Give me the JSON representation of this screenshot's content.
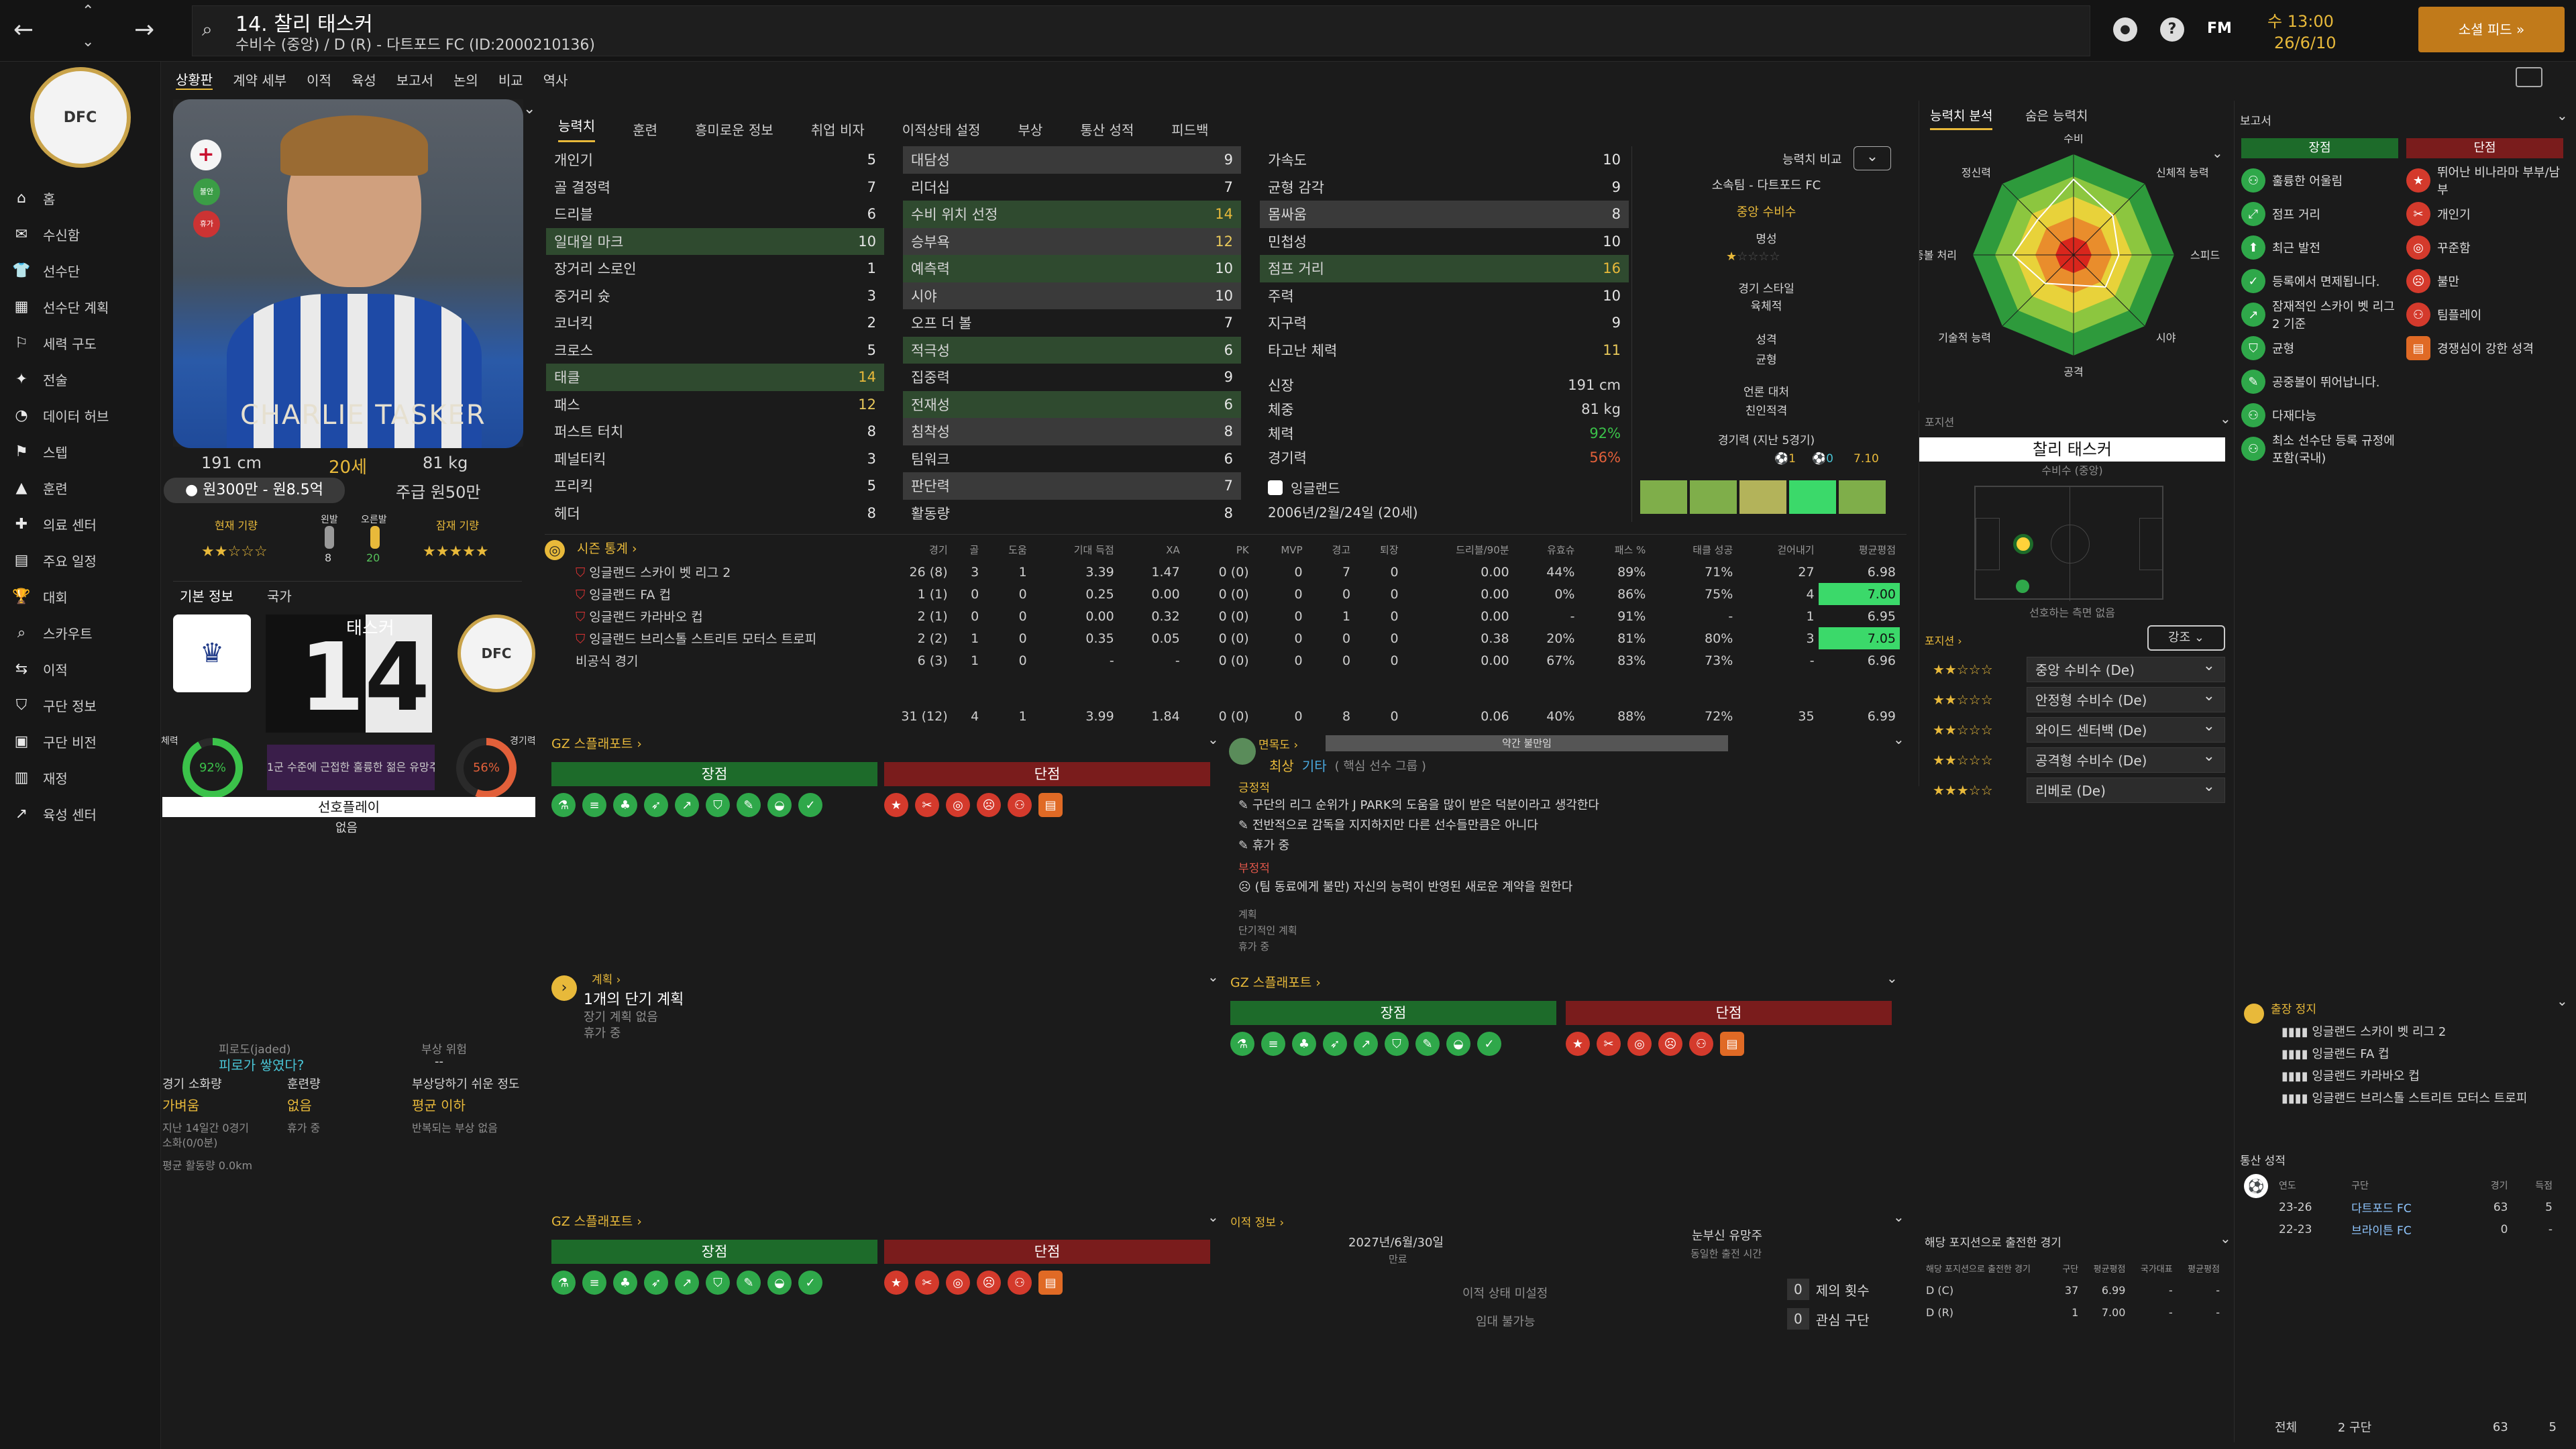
{
  "topbar": {
    "title": "14. 찰리 태스커",
    "subtitle": "수비수 (중앙) / D (R) - 다트포드 FC (ID:2000210136)",
    "time": "수 13:00",
    "date": "26/6/10",
    "continue_label": "소셜 피드",
    "fm_label": "FM"
  },
  "subnav": [
    "상황판",
    "계약 세부",
    "이적",
    "육성",
    "보고서",
    "논의",
    "비교",
    "역사"
  ],
  "leftnav": [
    {
      "icon": "home-icon",
      "label": "홈"
    },
    {
      "icon": "inbox-icon",
      "label": "수신함"
    },
    {
      "icon": "squad-icon",
      "label": "선수단"
    },
    {
      "icon": "squad-plan-icon",
      "label": "선수단 계획"
    },
    {
      "icon": "tactics-icon",
      "label": "세력 구도"
    },
    {
      "icon": "tactics2-icon",
      "label": "전술"
    },
    {
      "icon": "data-hub-icon",
      "label": "데이터 허브"
    },
    {
      "icon": "set-piece-icon",
      "label": "스텝"
    },
    {
      "icon": "training-icon",
      "label": "훈련"
    },
    {
      "icon": "medical-icon",
      "label": "의료 센터"
    },
    {
      "icon": "schedule-icon",
      "label": "주요 일정"
    },
    {
      "icon": "trophy-icon",
      "label": "대회"
    },
    {
      "icon": "scouting-icon",
      "label": "스카우트"
    },
    {
      "icon": "transfer-icon",
      "label": "이적"
    },
    {
      "icon": "club-info-icon",
      "label": "구단 정보"
    },
    {
      "icon": "club-vision-icon",
      "label": "구단 비전"
    },
    {
      "icon": "finance-icon",
      "label": "재정"
    },
    {
      "icon": "dev-centre-icon",
      "label": "육성 센터"
    }
  ],
  "player": {
    "photo_name": "CHARLIE TASKER",
    "height": "191 cm",
    "age": "20세",
    "weight": "81 kg",
    "value": "원300만 - 원8.5억",
    "wage": "주급 원50만",
    "current_ability_label": "현재 기량",
    "potential_ability_label": "잠재 기량",
    "left_foot_label": "왼발",
    "right_foot_label": "오른발",
    "left_foot_value": "8",
    "right_foot_value": "20",
    "badges": [
      "불안",
      "휴가"
    ]
  },
  "basic_info": {
    "tab1": "기본 정보",
    "tab2": "국가",
    "shirt_name": "태스커",
    "shirt_number": "14",
    "fitness_label": "체력",
    "fitness_value": "92%",
    "match_sharpness_label": "경기력",
    "match_sharpness_value": "56%",
    "note": "1군 수준에 근접한 훌륭한 젊은 유망주",
    "preferred_moves_label": "선호플레이",
    "preferred_moves_value": "없음"
  },
  "fatigue": {
    "jaded_label": "피로도(jaded)",
    "jaded_value": "피로가 쌓였다?",
    "injury_risk_label": "부상 위험",
    "injury_risk_value": "--",
    "condition_label": "경기 소화량",
    "condition_value": "가벼움",
    "training_label": "훈련량",
    "training_value": "없음",
    "injury_prone_label": "부상당하기 쉬운 정도",
    "injury_prone_value": "평균 이하",
    "note1": "지난 14일간 0경기",
    "note2": "소화(0/0분)",
    "note3": "휴가 중",
    "note4": "반복되는 부상 없음",
    "distance": "평균 활동량 0.0km"
  },
  "attr_tabs": [
    "능력치",
    "훈련",
    "흥미로운 정보",
    "취업 비자",
    "이적상태 설정",
    "부상",
    "통산 성적",
    "피드백"
  ],
  "technical": [
    {
      "name": "개인기",
      "value": "5"
    },
    {
      "name": "골 결정력",
      "value": "7"
    },
    {
      "name": "드리블",
      "value": "6"
    },
    {
      "name": "일대일 마크",
      "value": "10"
    },
    {
      "name": "장거리 스로인",
      "value": "1"
    },
    {
      "name": "중거리 슛",
      "value": "3"
    },
    {
      "name": "코너킥",
      "value": "2"
    },
    {
      "name": "크로스",
      "value": "5"
    },
    {
      "name": "태클",
      "value": "14"
    },
    {
      "name": "패스",
      "value": "12"
    },
    {
      "name": "퍼스트 터치",
      "value": "8"
    },
    {
      "name": "페널티킥",
      "value": "3"
    },
    {
      "name": "프리킥",
      "value": "5"
    },
    {
      "name": "헤더",
      "value": "8"
    }
  ],
  "mental": [
    {
      "name": "대담성",
      "value": "9"
    },
    {
      "name": "리더십",
      "value": "7"
    },
    {
      "name": "수비 위치 선정",
      "value": "14"
    },
    {
      "name": "승부욕",
      "value": "12"
    },
    {
      "name": "예측력",
      "value": "10"
    },
    {
      "name": "시야",
      "value": "10"
    },
    {
      "name": "오프 더 볼",
      "value": "7"
    },
    {
      "name": "적극성",
      "value": "6"
    },
    {
      "name": "집중력",
      "value": "9"
    },
    {
      "name": "전재성",
      "value": "6"
    },
    {
      "name": "침착성",
      "value": "8"
    },
    {
      "name": "팀워크",
      "value": "6"
    },
    {
      "name": "판단력",
      "value": "7"
    },
    {
      "name": "활동량",
      "value": "8"
    }
  ],
  "physical": [
    {
      "name": "가속도",
      "value": "10"
    },
    {
      "name": "균형 감각",
      "value": "9"
    },
    {
      "name": "몸싸움",
      "value": "8"
    },
    {
      "name": "민첩성",
      "value": "10"
    },
    {
      "name": "점프 거리",
      "value": "16"
    },
    {
      "name": "주력",
      "value": "10"
    },
    {
      "name": "지구력",
      "value": "9"
    },
    {
      "name": "타고난 체력",
      "value": "11"
    }
  ],
  "physical_info": [
    {
      "label": "신장",
      "value": "191 cm"
    },
    {
      "label": "체중",
      "value": "81 kg"
    },
    {
      "label": "체력",
      "value": "92%"
    },
    {
      "label": "경기력",
      "value": "56%"
    }
  ],
  "nationality": "잉글랜드",
  "dob": "2006년/2월/24일 (20세)",
  "comparison": {
    "title": "능력치 비교",
    "club": "소속팀 - 다트포드 FC",
    "position": "중앙 수비수",
    "reputation_label": "명성",
    "playing_style_label": "경기 스타일",
    "playing_style_value": "육체적",
    "personality_label": "성격",
    "personality_value": "균형",
    "media_label": "언론 대처",
    "media_value": "친인적격",
    "form_label": "경기력 (지난 5경기)",
    "form_goals": "1",
    "form_assists": "0",
    "form_rating": "7.10"
  },
  "season_stats": {
    "title": "시즌 통계",
    "headers": [
      "경기",
      "골",
      "도움",
      "기대 득점",
      "XA",
      "PK",
      "MVP",
      "경고",
      "퇴장",
      "드리블/90분",
      "유효슈",
      "패스 %",
      "태클 성공",
      "걷어내기",
      "평균평점"
    ],
    "rows": [
      {
        "comp": "잉글랜드 스카이 벳 리그 2",
        "vals": [
          "26 (8)",
          "3",
          "1",
          "3.39",
          "1.47",
          "0 (0)",
          "0",
          "7",
          "0",
          "0.00",
          "44%",
          "89%",
          "71%",
          "27",
          "6.98"
        ]
      },
      {
        "comp": "잉글랜드 FA 컵",
        "vals": [
          "1 (1)",
          "0",
          "0",
          "0.25",
          "0.00",
          "0 (0)",
          "0",
          "0",
          "0",
          "0.00",
          "0%",
          "86%",
          "75%",
          "4",
          "7.00"
        ]
      },
      {
        "comp": "잉글랜드 카라바오 컵",
        "vals": [
          "2 (1)",
          "0",
          "0",
          "0.00",
          "0.32",
          "0 (0)",
          "0",
          "1",
          "0",
          "0.00",
          "-",
          "91%",
          "-",
          "1",
          "6.95"
        ]
      },
      {
        "comp": "잉글랜드 브리스톨 스트리트 모터스 트로피",
        "vals": [
          "2 (2)",
          "1",
          "0",
          "0.35",
          "0.05",
          "0 (0)",
          "0",
          "0",
          "0",
          "0.38",
          "20%",
          "81%",
          "80%",
          "3",
          "7.05"
        ]
      },
      {
        "comp": "비공식 경기",
        "vals": [
          "6 (3)",
          "1",
          "0",
          "-",
          "-",
          "0 (0)",
          "0",
          "0",
          "0",
          "0.00",
          "67%",
          "83%",
          "73%",
          "-",
          "6.96"
        ]
      }
    ],
    "total": [
      "31 (12)",
      "4",
      "1",
      "3.99",
      "1.84",
      "0 (0)",
      "0",
      "8",
      "0",
      "0.06",
      "40%",
      "88%",
      "72%",
      "35",
      "6.99"
    ]
  },
  "scout_report": {
    "title": "스플래포트",
    "title2": "스플래포트",
    "strengths_label": "장점",
    "weaknesses_label": "단점"
  },
  "interaction": {
    "title": "면목도",
    "status": "약간 불만임",
    "level": "최상",
    "level2": "기타",
    "group": "( 핵심 선수 그룹 )",
    "positive_label": "긍정적",
    "positive": [
      "구단의 리그 순위가 J PARK의 도움을 많이 받은 덕분이라고 생각한다",
      "전반적으로 감독을 지지하지만 다른 선수들만큼은 아니다",
      "휴가 중"
    ],
    "negative_label": "부정적",
    "negative": [
      "(팀 동료에게 불만) 자신의 능력이 반영된 새로운 계약을 원한다"
    ],
    "plans_label": "계획",
    "plans_sub": "단기적인 계획",
    "plans_item": "휴가 중"
  },
  "plans": {
    "title": "계획",
    "headline": "1개의 단기 계획",
    "line1": "장기 계획 없음",
    "line2": "휴가 중"
  },
  "transfer": {
    "title": "이적 정보",
    "contract_date": "2027년/6월/30일",
    "contract_label": "만료",
    "loan_label": "눈부신 유망주",
    "loan_sub": "동일한 출전 시간",
    "status_label": "이적 상태 미설정",
    "release_label": "임대 불가능",
    "offers_count": "0",
    "offers_label": "제의 횟수",
    "interest_count": "0",
    "interest_label": "관심 구단"
  },
  "ability_tabs": [
    "능력치 분석",
    "숨은 능력치"
  ],
  "radar_labels": [
    "수비",
    "신체적 능력",
    "스피드",
    "시야",
    "공격",
    "기술적 능력",
    "공중볼 처리",
    "정신력"
  ],
  "radar_values": [
    0.75,
    0.55,
    0.45,
    0.45,
    0.3,
    0.4,
    0.6,
    0.5
  ],
  "positions": {
    "title": "포지션",
    "name": "찰리 태스커",
    "main": "수비수 (중앙)",
    "preferred_side": "선호하는 측면 없음",
    "roles_title": "포지션",
    "highlight_label": "강조",
    "roles": [
      {
        "stars": "★★☆☆☆",
        "role": "중앙 수비수 (De)"
      },
      {
        "stars": "★★☆☆☆",
        "role": "안정형 수비수 (De)"
      },
      {
        "stars": "★★☆☆☆",
        "role": "와이드 센터백 (De)"
      },
      {
        "stars": "★★☆☆☆",
        "role": "공격형 수비수 (De)"
      },
      {
        "stars": "★★★☆☆",
        "role": "리베로 (De)"
      }
    ]
  },
  "appearances": {
    "title": "해당 포지션으로 출전한 경기",
    "headers": [
      "해당 포지션으로 출전한 경기",
      "구단",
      "평균평점",
      "국가대표",
      "평균평점"
    ],
    "rows": [
      {
        "pos": "D (C)",
        "apps": "37",
        "rating": "6.99",
        "int": "-",
        "int_rating": "-"
      },
      {
        "pos": "D (R)",
        "apps": "1",
        "rating": "7.00",
        "int": "-",
        "int_rating": "-"
      }
    ]
  },
  "reports": {
    "title": "보고서",
    "strengths_label": "장점",
    "weaknesses_label": "단점",
    "strengths": [
      "훌륭한 어울림",
      "점프 거리",
      "최근 발전",
      "등록에서 면제됩니다.",
      "잠재적인 스카이 벳 리그 2 기준",
      "균형",
      "공중볼이 뛰어납니다.",
      "다재다능",
      "최소 선수단 등록 규정에 포함(국내)"
    ],
    "weaknesses": [
      "뛰어난 비나라마 부부/남부",
      "개인기",
      "꾸준함",
      "불만",
      "팀플레이",
      "경쟁심이 강한 성격"
    ]
  },
  "suspension": {
    "title": "출장 정지",
    "items": [
      "잉글랜드 스카이 벳 리그 2",
      "잉글랜드 FA 컵",
      "잉글랜드 카라바오 컵",
      "잉글랜드 브리스톨 스트리트 모터스 트로피"
    ]
  },
  "career": {
    "title": "통산 성적",
    "headers": [
      "연도",
      "구단",
      "경기",
      "득점"
    ],
    "rows": [
      {
        "year": "23-26",
        "club": "다트포드 FC",
        "apps": "63",
        "goals": "5"
      },
      {
        "year": "22-23",
        "club": "브라이튼 FC",
        "apps": "0",
        "goals": "-"
      }
    ],
    "total_label": "전체",
    "total_clubs": "2 구단",
    "total_apps": "63",
    "total_goals": "5"
  },
  "colors": {
    "accent": "#e8b93a",
    "green": "#1d6b2a",
    "red": "#7a1c1c"
  }
}
